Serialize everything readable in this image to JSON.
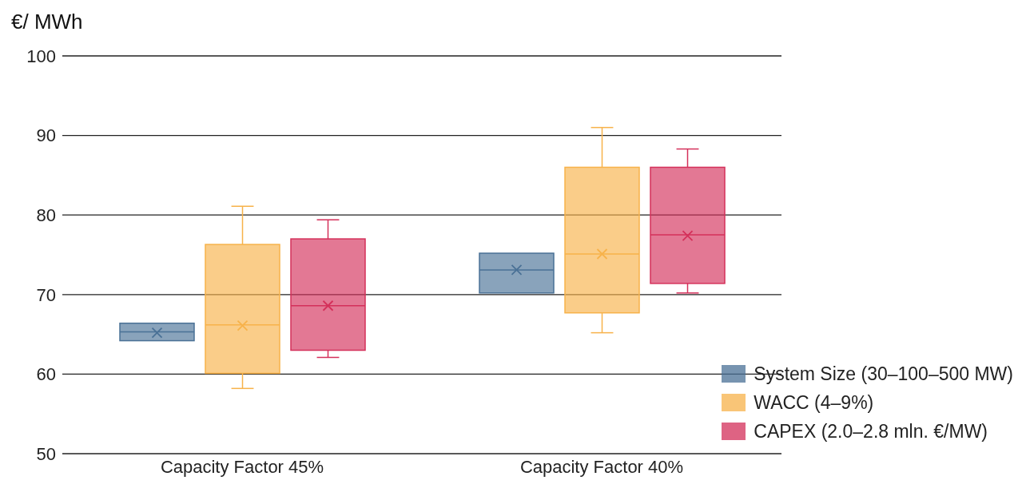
{
  "chart_data": {
    "type": "box",
    "ylabel": "€/ MWh",
    "categories": [
      "Capacity Factor 45%",
      "Capacity Factor 40%"
    ],
    "ylim": [
      50,
      100
    ],
    "yticks": [
      50,
      60,
      70,
      80,
      90,
      100
    ],
    "grid": "y",
    "legend": "bottom right",
    "marker": "cross",
    "series": [
      {
        "name": "System Size (30–100–500 MW)",
        "color": "#4a7196",
        "boxes": [
          {
            "low": 64.2,
            "q1": 64.2,
            "median": 65.3,
            "q3": 66.4,
            "high": 66.4,
            "mean": 65.2
          },
          {
            "low": 70.2,
            "q1": 70.2,
            "median": 73.1,
            "q3": 75.2,
            "high": 75.2,
            "mean": 73.1
          }
        ]
      },
      {
        "name": "WACC (4–9%)",
        "color": "#f7b24a",
        "boxes": [
          {
            "low": 58.2,
            "q1": 60.1,
            "median": 66.2,
            "q3": 76.3,
            "high": 81.1,
            "mean": 66.1
          },
          {
            "low": 65.2,
            "q1": 67.7,
            "median": 75.1,
            "q3": 86.0,
            "high": 91.0,
            "mean": 75.1
          }
        ]
      },
      {
        "name": "CAPEX (2.0–2.8 mln. €/MW)",
        "color": "#d4305a",
        "boxes": [
          {
            "low": 62.1,
            "q1": 63.0,
            "median": 68.6,
            "q3": 77.0,
            "high": 79.4,
            "mean": 68.6
          },
          {
            "low": 70.2,
            "q1": 71.4,
            "median": 77.5,
            "q3": 86.0,
            "high": 88.3,
            "mean": 77.4
          }
        ]
      }
    ]
  }
}
